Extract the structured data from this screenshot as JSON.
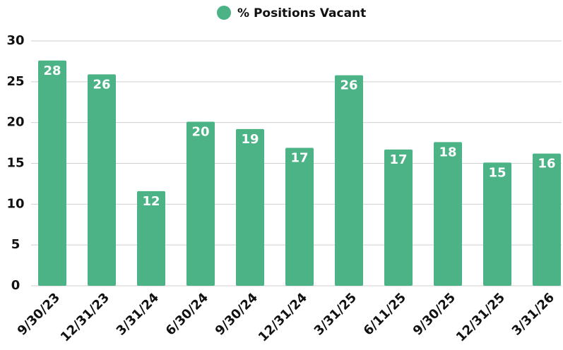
{
  "chart_data": {
    "type": "bar",
    "legend": "% Positions Vacant",
    "legend_position": "top",
    "categories": [
      "9/30/23",
      "12/31/23",
      "3/31/24",
      "6/30/24",
      "9/30/24",
      "12/31/24",
      "3/31/25",
      "6/11/25",
      "9/30/25",
      "12/31/25",
      "3/31/26"
    ],
    "values": [
      27.6,
      25.9,
      11.6,
      20.1,
      19.2,
      16.9,
      25.8,
      16.7,
      17.6,
      15.1,
      16.2
    ],
    "value_labels": [
      "28",
      "26",
      "12",
      "20",
      "19",
      "17",
      "26",
      "17",
      "18",
      "15",
      "16"
    ],
    "color": "#4cb387",
    "ylim": [
      0,
      30
    ],
    "yticks": [
      0,
      5,
      10,
      15,
      20,
      25,
      30
    ],
    "grid": true
  }
}
